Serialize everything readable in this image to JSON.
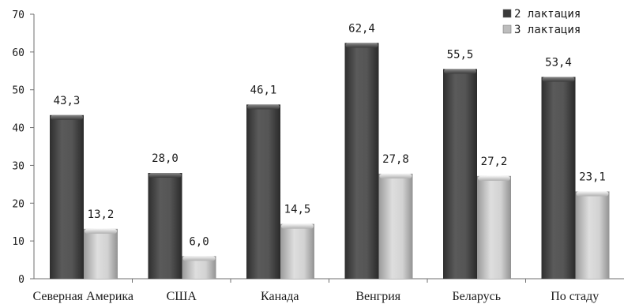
{
  "chart_data": {
    "type": "bar",
    "categories": [
      "Северная Америка",
      "США",
      "Канада",
      "Венгрия",
      "Беларусь",
      "По стаду"
    ],
    "series": [
      {
        "name": "2 лактация",
        "values": [
          43.3,
          28.0,
          46.1,
          62.4,
          55.5,
          53.4
        ],
        "labels": [
          "43,3",
          "28,0",
          "46,1",
          "62,4",
          "55,5",
          "53,4"
        ],
        "color": "#4a4a4a"
      },
      {
        "name": "3 лактация",
        "values": [
          13.2,
          6.0,
          14.5,
          27.8,
          27.2,
          23.1
        ],
        "labels": [
          "13,2",
          "6,0",
          "14,5",
          "27,8",
          "27,2",
          "23,1"
        ],
        "color": "#c4c4c4"
      }
    ],
    "ylim": [
      0,
      70
    ],
    "yticks": [
      0,
      10,
      20,
      30,
      40,
      50,
      60,
      70
    ],
    "grid": false,
    "legend_position": "top-right",
    "title": "",
    "xlabel": "",
    "ylabel": ""
  }
}
